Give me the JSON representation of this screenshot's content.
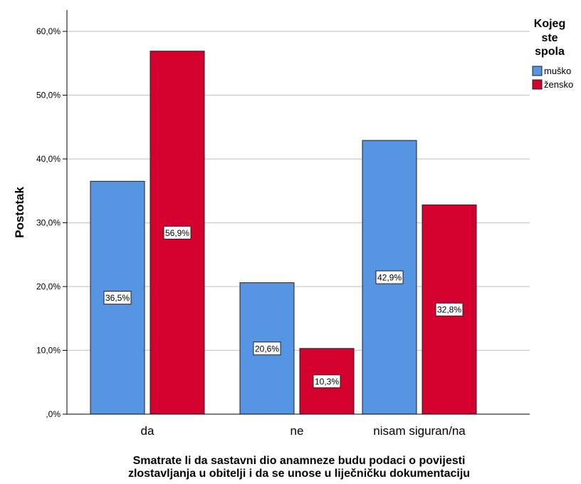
{
  "chart_data": {
    "type": "bar",
    "categories": [
      "da",
      "ne",
      "nisam siguran/na"
    ],
    "series": [
      {
        "name": "muško",
        "values": [
          36.5,
          20.6,
          42.9
        ],
        "color": "#5595e4",
        "labels": [
          "36,5%",
          "20,6%",
          "42,9%"
        ]
      },
      {
        "name": "žensko",
        "values": [
          56.9,
          10.3,
          32.8
        ],
        "color": "#d4002e",
        "labels": [
          "56,9%",
          "10,3%",
          "32,8%"
        ]
      }
    ],
    "title": "",
    "xlabel_lines": [
      "Smatrate li da sastavni dio anamneze budu podaci o povijesti",
      "zlostavljanja u obitelji i da se unose u liječničku dokumentaciju"
    ],
    "ylabel": "Postotak",
    "ylim": [
      0,
      60
    ],
    "y_ticks": [
      0,
      10,
      20,
      30,
      40,
      50,
      60
    ],
    "y_tick_labels": [
      ",0%",
      "10,0%",
      "20,0%",
      "30,0%",
      "40,0%",
      "50,0%",
      "60,0%"
    ],
    "legend": {
      "title_lines": [
        "Kojeg",
        "ste",
        "spola"
      ],
      "position": "top-right"
    },
    "grid": true
  }
}
